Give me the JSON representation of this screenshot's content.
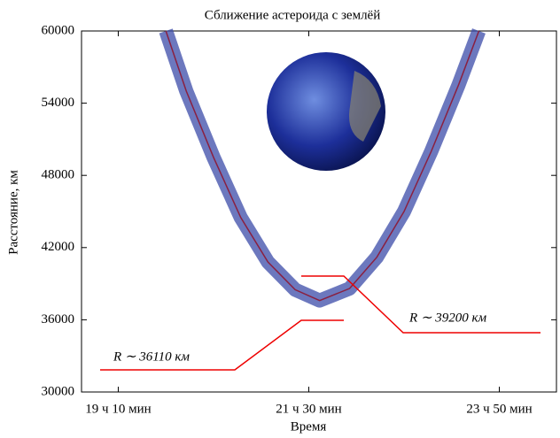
{
  "chart_data": {
    "type": "line",
    "title": "Сближение астероида с землёй",
    "xlabel": "Время",
    "ylabel": "Расстояние, км",
    "x": [
      1185,
      1200,
      1220,
      1240,
      1260,
      1280,
      1298,
      1320,
      1340,
      1360,
      1380,
      1400,
      1415
    ],
    "series": [
      {
        "color": "#3b4ba8",
        "values": [
          60000,
          55000,
          49500,
          44500,
          40800,
          38500,
          37600,
          38600,
          41200,
          45000,
          50000,
          55500,
          60000
        ]
      }
    ],
    "xlim": [
      1123,
      1472
    ],
    "xticks": [
      {
        "value": 1150,
        "label": "19 ч 10 мин"
      },
      {
        "value": 1290,
        "label": "21 ч 30 мин"
      },
      {
        "value": 1430,
        "label": "23 ч 50 мин"
      }
    ],
    "ylim": [
      30000,
      60000
    ],
    "yticks": [
      30000,
      36000,
      42000,
      48000,
      54000,
      60000
    ],
    "annotations": [
      "R ∼ 36110 км",
      "R ∼ 39200 км"
    ]
  }
}
